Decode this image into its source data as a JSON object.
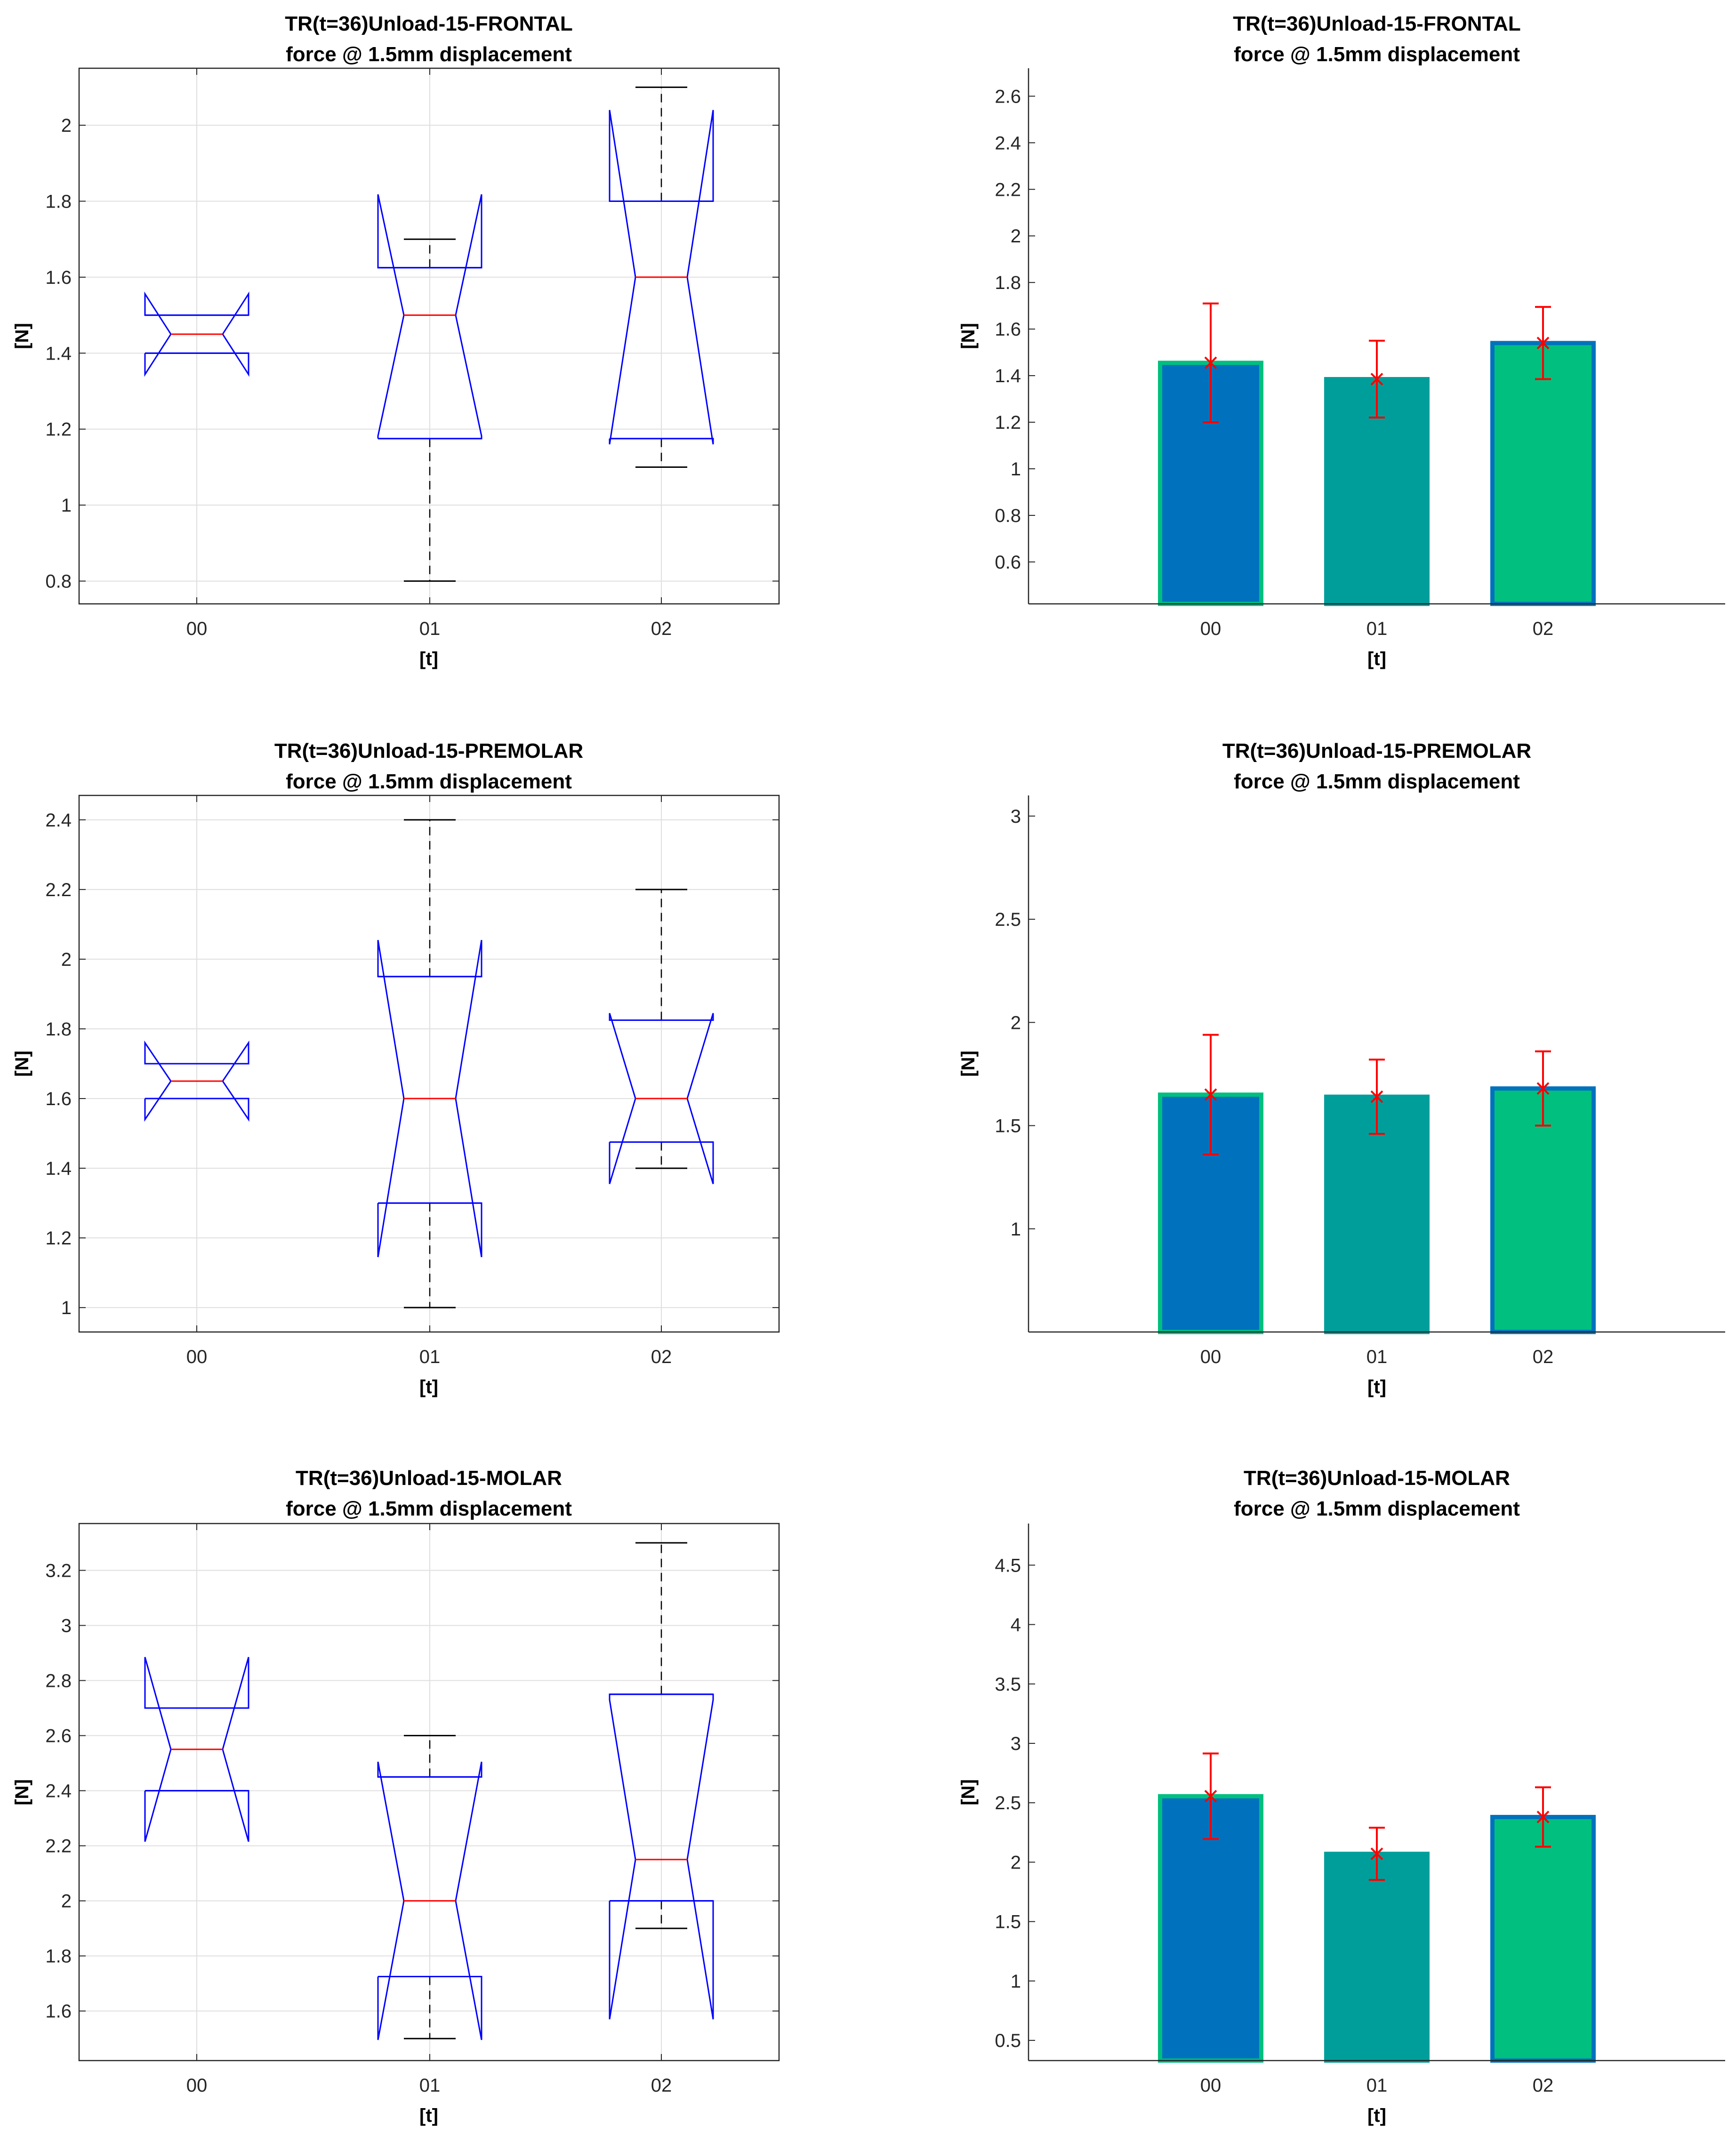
{
  "figure_title": "",
  "chart_data": [
    {
      "type": "boxplot",
      "title": [
        "TR(t=36)Unload-15-FRONTAL",
        "force @ 1.5mm displacement"
      ],
      "xlabel": "[t]",
      "ylabel": "[N]",
      "categories": [
        "00",
        "01",
        "02"
      ],
      "ylim": [
        0.74,
        2.15
      ],
      "yticks": [
        0.8,
        1,
        1.2,
        1.4,
        1.6,
        1.8,
        2
      ],
      "ytick_labels": [
        "0.8",
        "1",
        "1.2",
        "1.4",
        "1.6",
        "1.8",
        "2"
      ],
      "grid": true,
      "boxes": [
        {
          "category": "00",
          "whisker_low": 1.4,
          "q1": 1.4,
          "median": 1.45,
          "q3": 1.5,
          "whisker_high": 1.5,
          "notch_low": 1.344,
          "notch_high": 1.556
        },
        {
          "category": "01",
          "whisker_low": 0.8,
          "q1": 1.175,
          "median": 1.5,
          "q3": 1.625,
          "whisker_high": 1.7,
          "notch_low": 1.182,
          "notch_high": 1.818
        },
        {
          "category": "02",
          "whisker_low": 1.1,
          "q1": 1.175,
          "median": 1.6,
          "q3": 1.8,
          "whisker_high": 2.1,
          "notch_low": 1.16,
          "notch_high": 2.04
        }
      ],
      "colors": {
        "box": "#0000ff",
        "median": "#ff0000",
        "whisker": "#000000",
        "grid": "#dfdfdf",
        "axis": "#262626"
      }
    },
    {
      "type": "bar",
      "title": [
        "TR(t=36)Unload-15-FRONTAL",
        "force @ 1.5mm displacement"
      ],
      "xlabel": "[t]",
      "ylabel": "[N]",
      "categories": [
        "00",
        "01",
        "02"
      ],
      "values": [
        1.455,
        1.385,
        1.54
      ],
      "error_low": [
        0.255,
        0.165,
        0.155
      ],
      "error_high": [
        0.255,
        0.165,
        0.155
      ],
      "ylim": [
        0.42,
        2.72
      ],
      "yticks": [
        0.6,
        0.8,
        1,
        1.2,
        1.4,
        1.6,
        1.8,
        2,
        2.2,
        2.4,
        2.6
      ],
      "ytick_labels": [
        "0.6",
        "0.8",
        "1",
        "1.2",
        "1.4",
        "1.6",
        "1.8",
        "2",
        "2.2",
        "2.4",
        "2.6"
      ],
      "grid": false,
      "colors": {
        "fills": [
          "#0072bd",
          "#009e9a",
          "#00bf7f"
        ],
        "edges": [
          "#00bf7f",
          "#009e9a",
          "#0072bd"
        ],
        "error": "#ff0000",
        "axis": "#262626"
      }
    },
    {
      "type": "boxplot",
      "title": [
        "TR(t=36)Unload-15-PREMOLAR",
        "force @ 1.5mm displacement"
      ],
      "xlabel": "[t]",
      "ylabel": "[N]",
      "categories": [
        "00",
        "01",
        "02"
      ],
      "ylim": [
        0.93,
        2.47
      ],
      "yticks": [
        1,
        1.2,
        1.4,
        1.6,
        1.8,
        2,
        2.2,
        2.4
      ],
      "ytick_labels": [
        "1",
        "1.2",
        "1.4",
        "1.6",
        "1.8",
        "2",
        "2.2",
        "2.4"
      ],
      "grid": true,
      "boxes": [
        {
          "category": "00",
          "whisker_low": 1.6,
          "q1": 1.6,
          "median": 1.65,
          "q3": 1.7,
          "whisker_high": 1.7,
          "notch_low": 1.54,
          "notch_high": 1.76
        },
        {
          "category": "01",
          "whisker_low": 1.0,
          "q1": 1.3,
          "median": 1.6,
          "q3": 1.95,
          "whisker_high": 2.4,
          "notch_low": 1.145,
          "notch_high": 2.055
        },
        {
          "category": "02",
          "whisker_low": 1.4,
          "q1": 1.475,
          "median": 1.6,
          "q3": 1.825,
          "whisker_high": 2.2,
          "notch_low": 1.355,
          "notch_high": 1.845
        }
      ],
      "colors": {
        "box": "#0000ff",
        "median": "#ff0000",
        "whisker": "#000000",
        "grid": "#dfdfdf",
        "axis": "#262626"
      }
    },
    {
      "type": "bar",
      "title": [
        "TR(t=36)Unload-15-PREMOLAR",
        "force @ 1.5mm displacement"
      ],
      "xlabel": "[t]",
      "ylabel": "[N]",
      "categories": [
        "00",
        "01",
        "02"
      ],
      "values": [
        1.65,
        1.64,
        1.68
      ],
      "error_low": [
        0.29,
        0.18,
        0.18
      ],
      "error_high": [
        0.29,
        0.18,
        0.18
      ],
      "ylim": [
        0.5,
        3.1
      ],
      "yticks": [
        1,
        1.5,
        2,
        2.5,
        3
      ],
      "ytick_labels": [
        "1",
        "1.5",
        "2",
        "2.5",
        "3"
      ],
      "grid": false,
      "colors": {
        "fills": [
          "#0072bd",
          "#009e9a",
          "#00bf7f"
        ],
        "edges": [
          "#00bf7f",
          "#009e9a",
          "#0072bd"
        ],
        "error": "#ff0000",
        "axis": "#262626"
      }
    },
    {
      "type": "boxplot",
      "title": [
        "TR(t=36)Unload-15-MOLAR",
        "force @ 1.5mm displacement"
      ],
      "xlabel": "[t]",
      "ylabel": "[N]",
      "categories": [
        "00",
        "01",
        "02"
      ],
      "ylim": [
        1.42,
        3.37
      ],
      "yticks": [
        1.6,
        1.8,
        2,
        2.2,
        2.4,
        2.6,
        2.8,
        3,
        3.2
      ],
      "ytick_labels": [
        "1.6",
        "1.8",
        "2",
        "2.2",
        "2.4",
        "2.6",
        "2.8",
        "3",
        "3.2"
      ],
      "grid": true,
      "boxes": [
        {
          "category": "00",
          "whisker_low": 2.4,
          "q1": 2.4,
          "median": 2.55,
          "q3": 2.7,
          "whisker_high": 2.7,
          "notch_low": 2.215,
          "notch_high": 2.885
        },
        {
          "category": "01",
          "whisker_low": 1.5,
          "q1": 1.725,
          "median": 2.0,
          "q3": 2.45,
          "whisker_high": 2.6,
          "notch_low": 1.495,
          "notch_high": 2.505
        },
        {
          "category": "02",
          "whisker_low": 1.9,
          "q1": 2.0,
          "median": 2.15,
          "q3": 2.75,
          "whisker_high": 3.3,
          "notch_low": 1.57,
          "notch_high": 2.73
        }
      ],
      "colors": {
        "box": "#0000ff",
        "median": "#ff0000",
        "whisker": "#000000",
        "grid": "#dfdfdf",
        "axis": "#262626"
      }
    },
    {
      "type": "bar",
      "title": [
        "TR(t=36)Unload-15-MOLAR",
        "force @ 1.5mm displacement"
      ],
      "xlabel": "[t]",
      "ylabel": "[N]",
      "categories": [
        "00",
        "01",
        "02"
      ],
      "values": [
        2.555,
        2.07,
        2.38
      ],
      "error_low": [
        0.36,
        0.22,
        0.25
      ],
      "error_high": [
        0.36,
        0.22,
        0.25
      ],
      "ylim": [
        0.33,
        4.85
      ],
      "yticks": [
        0.5,
        1,
        1.5,
        2,
        2.5,
        3,
        3.5,
        4,
        4.5
      ],
      "ytick_labels": [
        "0.5",
        "1",
        "1.5",
        "2",
        "2.5",
        "3",
        "3.5",
        "4",
        "4.5"
      ],
      "grid": false,
      "colors": {
        "fills": [
          "#0072bd",
          "#009e9a",
          "#00bf7f"
        ],
        "edges": [
          "#00bf7f",
          "#009e9a",
          "#0072bd"
        ],
        "error": "#ff0000",
        "axis": "#262626"
      }
    }
  ]
}
